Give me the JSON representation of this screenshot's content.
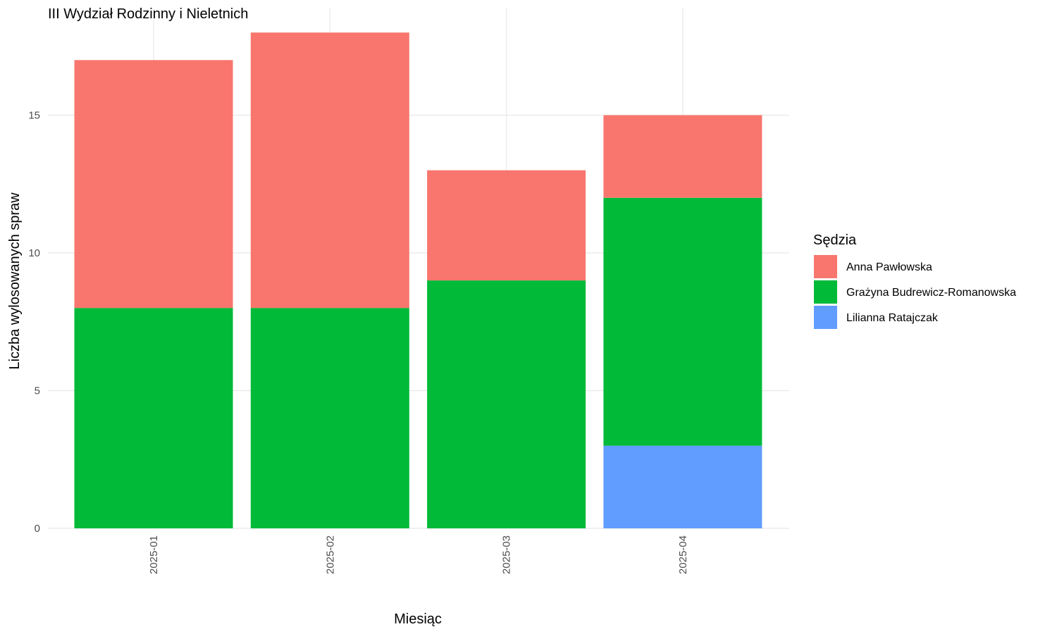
{
  "chart_data": {
    "type": "bar",
    "stacked": true,
    "title": "III Wydział Rodzinny i Nieletnich",
    "xlabel": "Miesiąc",
    "ylabel": "Liczba wylosowanych spraw",
    "categories": [
      "2025-01",
      "2025-02",
      "2025-03",
      "2025-04"
    ],
    "ylim": [
      0,
      18.5
    ],
    "yticks": [
      0,
      5,
      10,
      15
    ],
    "grid": true,
    "legend": {
      "title": "Sędzia",
      "position": "right"
    },
    "series": [
      {
        "name": "Lilianna Ratajczak",
        "color": "#619CFF",
        "values": [
          0,
          0,
          0,
          3
        ]
      },
      {
        "name": "Grażyna Budrewicz-Romanowska",
        "color": "#00BA38",
        "values": [
          8,
          8,
          9,
          9
        ]
      },
      {
        "name": "Anna Pawłowska",
        "color": "#F8766D",
        "values": [
          9,
          10,
          4,
          3
        ]
      }
    ],
    "legend_order": [
      "Anna Pawłowska",
      "Grażyna Budrewicz-Romanowska",
      "Lilianna Ratajczak"
    ]
  }
}
